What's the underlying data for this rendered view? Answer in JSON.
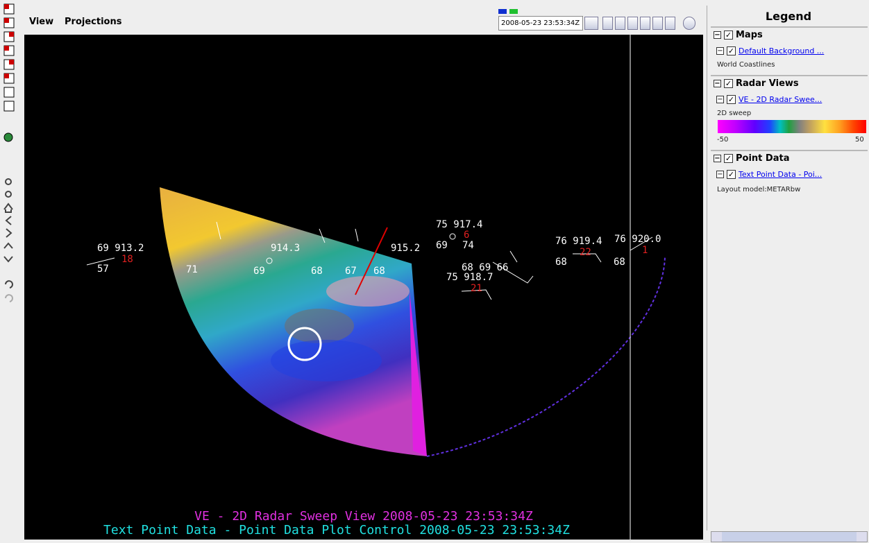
{
  "menu": [
    "View",
    "Projections"
  ],
  "time": "2008-05-23 23:53:34Z",
  "legend": {
    "title": "Legend",
    "groups": [
      {
        "name": "Maps",
        "layer": "Default Background ...",
        "detail": "World Coastlines"
      },
      {
        "name": "Radar Views",
        "layer": "VE - 2D Radar Swee...",
        "detail": "2D sweep",
        "scale_min": "-50",
        "scale_max": "50"
      },
      {
        "name": "Point Data",
        "layer": "Text Point Data - Poi...",
        "detail": "Layout model:METARbw"
      }
    ]
  },
  "captions": [
    "VE - 2D Radar Sweep View 2008-05-23 23:53:34Z",
    "Text Point Data - Point Data Plot Control 2008-05-23 23:53:34Z"
  ],
  "stations": [
    "69 913.2",
    "57",
    "18",
    "75 917.4",
    "6",
    "69",
    "74",
    "76 919.4",
    "22",
    "68",
    "76 920.0",
    "1",
    "68",
    "68 69 66",
    "75 918.7",
    "21",
    "71",
    "69",
    "68",
    "67",
    "68",
    "915.2",
    "914.3"
  ]
}
